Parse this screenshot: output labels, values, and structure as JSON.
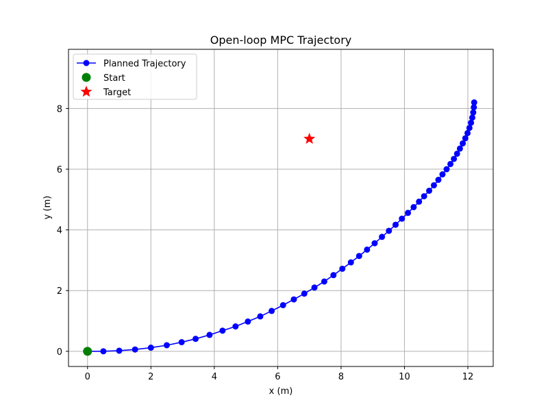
{
  "chart_data": {
    "type": "line",
    "title": "Open-loop MPC Trajectory",
    "xlabel": "x (m)",
    "ylabel": "y (m)",
    "xlim": [
      -0.6,
      12.8
    ],
    "ylim": [
      -0.5,
      9.95
    ],
    "xticks": [
      0,
      2,
      4,
      6,
      8,
      10,
      12
    ],
    "yticks": [
      0,
      2,
      4,
      6,
      8
    ],
    "grid": true,
    "legend_position": "upper-left",
    "legend": [
      {
        "label": "Planned Trajectory",
        "kind": "line-marker",
        "color": "#0000ff"
      },
      {
        "label": "Start",
        "kind": "circle",
        "color": "#008000"
      },
      {
        "label": "Target",
        "kind": "star",
        "color": "#ff0000"
      }
    ],
    "series": [
      {
        "name": "Planned Trajectory",
        "color": "#0000ff",
        "points": [
          [
            0.0,
            0.0
          ],
          [
            0.5,
            0.0
          ],
          [
            1.0,
            0.02
          ],
          [
            1.5,
            0.06
          ],
          [
            2.0,
            0.12
          ],
          [
            2.5,
            0.2
          ],
          [
            2.97,
            0.3
          ],
          [
            3.41,
            0.41
          ],
          [
            3.85,
            0.54
          ],
          [
            4.26,
            0.68
          ],
          [
            4.67,
            0.82
          ],
          [
            5.06,
            0.98
          ],
          [
            5.45,
            1.15
          ],
          [
            5.81,
            1.33
          ],
          [
            6.17,
            1.52
          ],
          [
            6.51,
            1.71
          ],
          [
            6.84,
            1.9
          ],
          [
            7.16,
            2.1
          ],
          [
            7.47,
            2.3
          ],
          [
            7.76,
            2.51
          ],
          [
            8.04,
            2.72
          ],
          [
            8.31,
            2.93
          ],
          [
            8.57,
            3.14
          ],
          [
            8.82,
            3.35
          ],
          [
            9.06,
            3.56
          ],
          [
            9.29,
            3.77
          ],
          [
            9.51,
            3.97
          ],
          [
            9.72,
            4.17
          ],
          [
            9.92,
            4.37
          ],
          [
            10.11,
            4.56
          ],
          [
            10.29,
            4.75
          ],
          [
            10.46,
            4.93
          ],
          [
            10.62,
            5.11
          ],
          [
            10.78,
            5.29
          ],
          [
            10.93,
            5.47
          ],
          [
            11.07,
            5.65
          ],
          [
            11.2,
            5.83
          ],
          [
            11.33,
            6.0
          ],
          [
            11.45,
            6.17
          ],
          [
            11.56,
            6.34
          ],
          [
            11.66,
            6.51
          ],
          [
            11.75,
            6.68
          ],
          [
            11.84,
            6.85
          ],
          [
            11.92,
            7.02
          ],
          [
            11.99,
            7.19
          ],
          [
            12.05,
            7.36
          ],
          [
            12.1,
            7.53
          ],
          [
            12.14,
            7.7
          ],
          [
            12.17,
            7.87
          ],
          [
            12.19,
            8.04
          ],
          [
            12.2,
            8.2
          ]
        ]
      },
      {
        "name": "Start",
        "color": "#008000",
        "points": [
          [
            0,
            0
          ]
        ]
      },
      {
        "name": "Target",
        "color": "#ff0000",
        "points": [
          [
            7,
            7
          ]
        ]
      }
    ]
  }
}
